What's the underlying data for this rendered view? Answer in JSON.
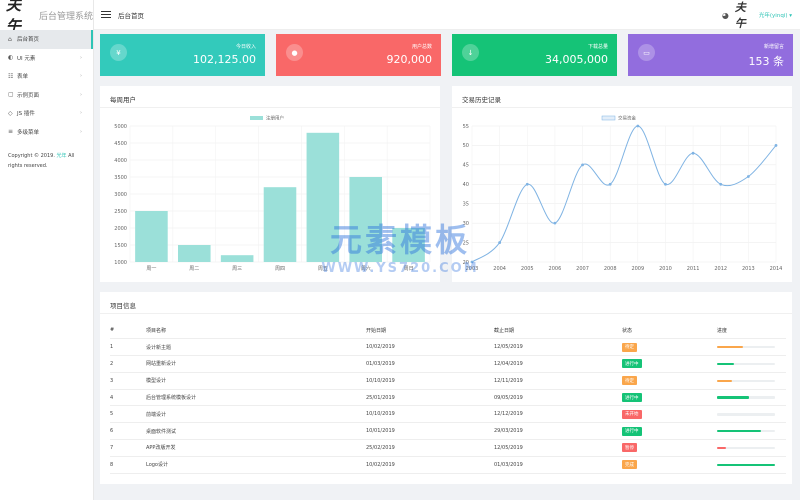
{
  "brand": {
    "logo": "夫午",
    "name": "后台管理系统"
  },
  "sidebar": {
    "items": [
      {
        "icon": "home-icon",
        "glyph": "⌂",
        "label": "后台首页",
        "chevron": ""
      },
      {
        "icon": "palette-icon",
        "glyph": "◐",
        "label": "UI 元素",
        "chevron": "›"
      },
      {
        "icon": "form-icon",
        "glyph": "☷",
        "label": "表单",
        "chevron": "›"
      },
      {
        "icon": "page-icon",
        "glyph": "▢",
        "label": "示例页面",
        "chevron": "›"
      },
      {
        "icon": "js-icon",
        "glyph": "◇",
        "label": "JS 插件",
        "chevron": "›"
      },
      {
        "icon": "menu-icon",
        "glyph": "≡",
        "label": "多级菜单",
        "chevron": "›"
      }
    ],
    "copyright_prefix": "Copyright © 2019.",
    "copyright_link": "光年",
    "copyright_suffix": "All rights reserved."
  },
  "header": {
    "title": "后台首页",
    "avatar": "夫午",
    "user": "光年(yinqi) ▾"
  },
  "stats": [
    {
      "icon": "yen-icon",
      "glyph": "¥",
      "label": "今日收入",
      "value": "102,125.00",
      "color": "#33cabb"
    },
    {
      "icon": "user-icon",
      "glyph": "●",
      "label": "用户总数",
      "value": "920,000",
      "color": "#f96868"
    },
    {
      "icon": "download-icon",
      "glyph": "↓",
      "label": "下载总量",
      "value": "34,005,000",
      "color": "#15c377"
    },
    {
      "icon": "comment-icon",
      "glyph": "▭",
      "label": "新增留言",
      "value": "153 条",
      "color": "#926dde"
    }
  ],
  "weekly": {
    "title": "每周用户"
  },
  "history": {
    "title": "交易历史记录"
  },
  "chart_data": [
    {
      "type": "bar",
      "title": "每周用户",
      "series": [
        {
          "name": "注册用户",
          "values": [
            2500,
            1500,
            1200,
            3200,
            4800,
            3500,
            2000
          ]
        }
      ],
      "categories": [
        "周一",
        "周二",
        "周三",
        "周四",
        "周五",
        "周六",
        "周日"
      ],
      "ylim": [
        1000,
        5000
      ],
      "yticks": [
        1000,
        1500,
        2000,
        2500,
        3000,
        3500,
        4000,
        4500,
        5000
      ],
      "color": "#9be0d9",
      "grid": true,
      "legend": "top-center"
    },
    {
      "type": "line",
      "title": "交易历史记录",
      "series": [
        {
          "name": "交易资金",
          "values": [
            20,
            25,
            40,
            30,
            45,
            40,
            55,
            40,
            48,
            40,
            42,
            50
          ]
        }
      ],
      "x": [
        "2003",
        "2004",
        "2005",
        "2006",
        "2007",
        "2008",
        "2009",
        "2010",
        "2011",
        "2012",
        "2013",
        "2014"
      ],
      "ylim": [
        20,
        55
      ],
      "yticks": [
        20,
        25,
        30,
        35,
        40,
        45,
        50,
        55
      ],
      "color": "#7fb3e3",
      "grid": true,
      "legend": "top-center"
    }
  ],
  "projects": {
    "title": "项目信息",
    "headers": [
      "#",
      "项目名称",
      "开始日期",
      "截止日期",
      "状态",
      "进度"
    ],
    "rows": [
      {
        "no": "1",
        "name": "设计新主题",
        "start": "10/02/2019",
        "end": "12/05/2019",
        "status": "待定",
        "status_color": "#faa64b",
        "progress": 0.45,
        "bar_color": "#faa64b"
      },
      {
        "no": "2",
        "name": "网站重新设计",
        "start": "01/03/2019",
        "end": "12/04/2019",
        "status": "进行中",
        "status_color": "#15c377",
        "progress": 0.3,
        "bar_color": "#15c377"
      },
      {
        "no": "3",
        "name": "模型设计",
        "start": "10/10/2019",
        "end": "12/11/2019",
        "status": "待定",
        "status_color": "#faa64b",
        "progress": 0.25,
        "bar_color": "#faa64b"
      },
      {
        "no": "4",
        "name": "后台管理系统模板设计",
        "start": "25/01/2019",
        "end": "09/05/2019",
        "status": "进行中",
        "status_color": "#15c377",
        "progress": 0.55,
        "bar_color": "#15c377"
      },
      {
        "no": "5",
        "name": "前端设计",
        "start": "10/10/2019",
        "end": "12/12/2019",
        "status": "未开始",
        "status_color": "#f96868",
        "progress": 0.0,
        "bar_color": "#f96868"
      },
      {
        "no": "6",
        "name": "桌面软件测试",
        "start": "10/01/2019",
        "end": "29/03/2019",
        "status": "进行中",
        "status_color": "#15c377",
        "progress": 0.75,
        "bar_color": "#15c377"
      },
      {
        "no": "7",
        "name": "APP改版开发",
        "start": "25/02/2019",
        "end": "12/05/2019",
        "status": "暂停",
        "status_color": "#f96868",
        "progress": 0.15,
        "bar_color": "#f96868"
      },
      {
        "no": "8",
        "name": "Logo设计",
        "start": "10/02/2019",
        "end": "01/03/2019",
        "status": "完成",
        "status_color": "#faa64b",
        "progress": 1.0,
        "bar_color": "#15c377"
      }
    ]
  },
  "watermark": {
    "main": "元素模板",
    "sub": "WWW.YS720.COM"
  }
}
